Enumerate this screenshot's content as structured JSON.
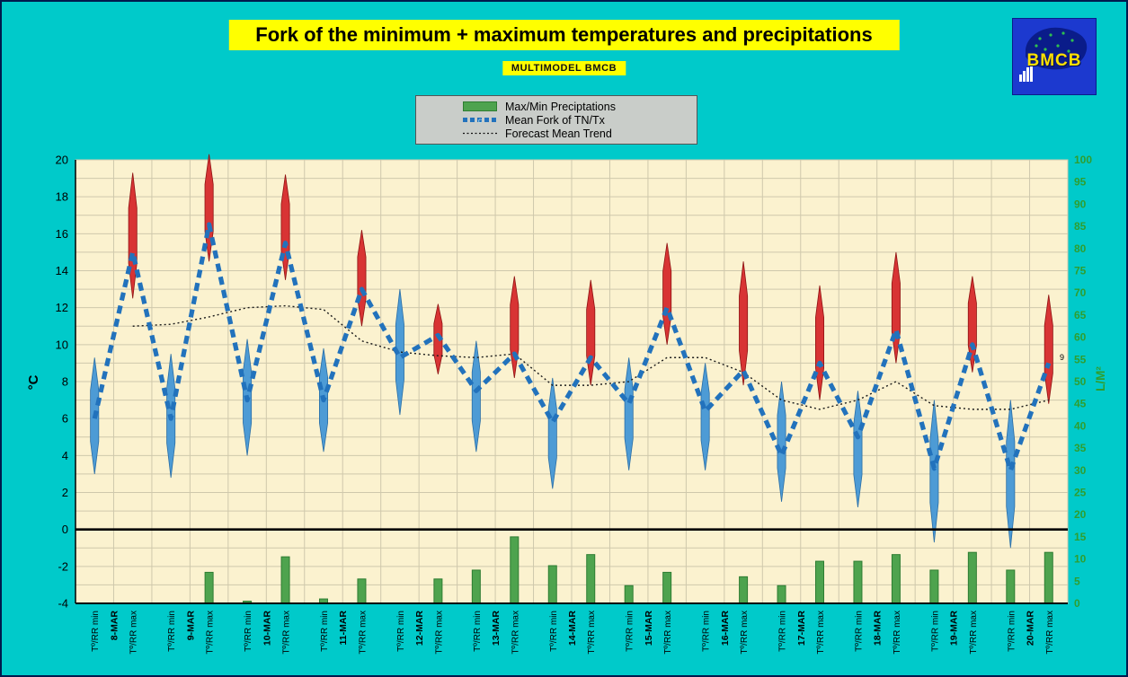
{
  "title": {
    "text": "Fork of the minimum + maximum temperatures and precipitations"
  },
  "subtitle": {
    "text": "MULTIMODEL BMCB"
  },
  "logo": {
    "text": "BMCB"
  },
  "legend": {
    "items": [
      {
        "label": "Max/Min Preciptations",
        "swatch": "green-bar"
      },
      {
        "label": "Mean Fork of TN/Tx",
        "swatch": "blue-dashed-line",
        "marker": "c"
      },
      {
        "label": "Forecast Mean Trend",
        "swatch": "black-dotted-line"
      }
    ]
  },
  "chart_data": {
    "type": "composite",
    "subtypes": [
      "range-spindle",
      "line",
      "bar"
    ],
    "left_axis": {
      "label": "°C",
      "min": -4,
      "max": 20,
      "tick_step": 2
    },
    "right_axis": {
      "label": "L/M²",
      "min": 0,
      "max": 100,
      "tick_step": 5
    },
    "x_label_min": "Tº/RR min",
    "x_label_max": "Tº/RR max",
    "days": [
      "8-MAR",
      "9-MAR",
      "10-MAR",
      "11-MAR",
      "12-MAR",
      "13-MAR",
      "14-MAR",
      "15-MAR",
      "16-MAR",
      "17-MAR",
      "18-MAR",
      "19-MAR",
      "20-MAR"
    ],
    "series": [
      {
        "role": "mean",
        "name": "Mean Fork of TN/Tx",
        "type": "dashed-line",
        "axis": "left",
        "values": [
          6,
          15,
          6,
          16.5,
          7,
          15.5,
          7,
          13,
          9.3,
          10.5,
          7.5,
          9.5,
          5.8,
          9.3,
          6.8,
          12,
          6.4,
          8.6,
          4,
          9,
          5,
          10.8,
          3.3,
          10,
          3.2,
          9
        ]
      },
      {
        "role": "fork_low",
        "name": "Fork minimum bound",
        "type": "range-low",
        "axis": "left",
        "values": [
          3,
          12.5,
          2.8,
          14.5,
          4,
          13.5,
          4.2,
          11,
          6.2,
          8.4,
          4.2,
          8.2,
          2.2,
          7.8,
          3.2,
          10,
          3.2,
          7.8,
          1.5,
          7,
          1.2,
          9,
          -0.7,
          8.5,
          -1,
          6.8
        ]
      },
      {
        "role": "fork_high",
        "name": "Fork maximum bound",
        "type": "range-high",
        "axis": "left",
        "values": [
          9.3,
          19.3,
          9.5,
          20.3,
          10.3,
          19.2,
          9.8,
          16.2,
          13,
          12.2,
          10.2,
          13.7,
          8.2,
          13.5,
          9.3,
          15.5,
          9,
          14.5,
          8,
          13.2,
          7.5,
          15,
          7,
          13.7,
          7,
          12.7
        ]
      },
      {
        "role": "precip",
        "name": "Max/Min Preciptations",
        "type": "bar",
        "axis": "right",
        "values": [
          0,
          0,
          0,
          7,
          0.5,
          10.5,
          1,
          5.5,
          0,
          5.5,
          7.5,
          15,
          8.5,
          11,
          4,
          7,
          0,
          6,
          4,
          9.5,
          9.5,
          11,
          7.5,
          11.5,
          7.5,
          11.5
        ]
      },
      {
        "role": "trend",
        "name": "Forecast Mean Trend",
        "type": "dotted-line",
        "axis": "left",
        "values": [
          null,
          11,
          11.1,
          11.5,
          12,
          12.1,
          11.9,
          10.2,
          9.6,
          9.4,
          9.3,
          9.5,
          7.8,
          7.8,
          8,
          9.3,
          9.3,
          8.5,
          7,
          6.5,
          7,
          8,
          6.7,
          6.5,
          6.5,
          7
        ]
      }
    ],
    "end_label": {
      "text": "9",
      "at_value": 9.3
    },
    "colors": {
      "page_bg": "#00CACA",
      "banner": "#FFFF00",
      "plot_bg": "#FBF2CF",
      "grid": "#CFC8AC",
      "min_spike": "#4D9BD5",
      "min_spike_edge": "#2A6EA6",
      "max_spike": "#D83434",
      "max_spike_edge": "#8F1212",
      "mean_line": "#2272BC",
      "trend": "#1a1a1a",
      "bar": "#4EA34E",
      "bar_edge": "#2E7D32",
      "right_axis_text": "#2F9E2F"
    }
  }
}
